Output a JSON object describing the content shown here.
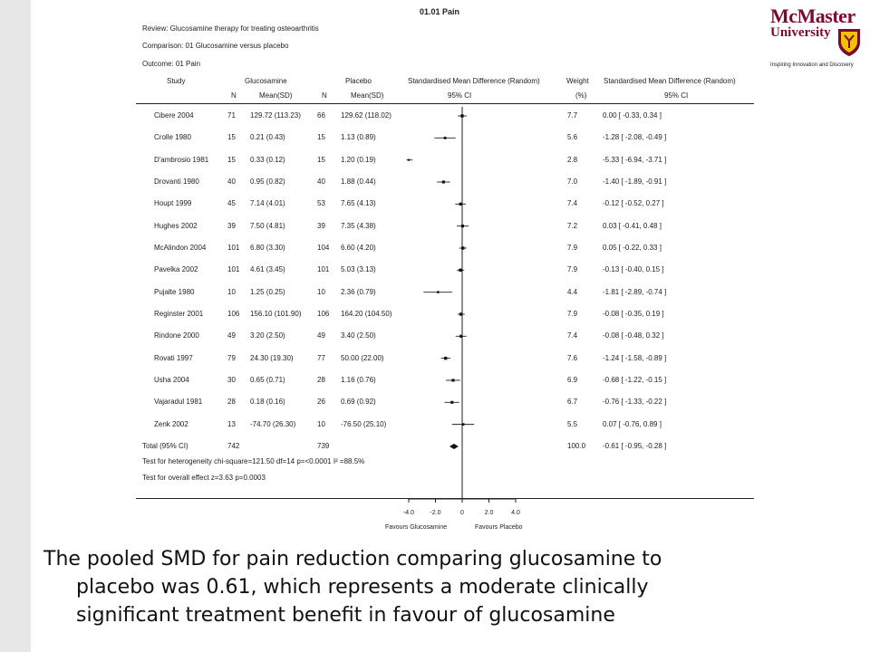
{
  "title": "01.01 Pain",
  "meta": {
    "review": "Review: Glucosamine therapy for treating osteoarthritis",
    "comparison": "Comparison: 01 Glucosamine versus placebo",
    "outcome": "Outcome: 01 Pain"
  },
  "headers": {
    "study": "Study",
    "glucosamine": "Glucosamine",
    "placebo": "Placebo",
    "smd1": "Standardised Mean Difference (Random)",
    "weight": "Weight",
    "smd2": "Standardised Mean Difference (Random)",
    "n1": "N",
    "mean1": "Mean(SD)",
    "n2": "N",
    "mean2": "Mean(SD)",
    "ci1": "95% CI",
    "pct": "(%)",
    "ci2": "95% CI"
  },
  "logo": {
    "line1": "McMaster",
    "line2": "University",
    "tagline": "Inspiring Innovation and Discovery"
  },
  "chart_data": {
    "type": "forest",
    "axis": {
      "min": -4,
      "max": 4,
      "ticks": [
        "-4.0",
        "-2.0",
        "0",
        "2.0",
        "4.0"
      ],
      "tick_values": [
        -4,
        -2,
        0,
        2,
        4
      ]
    },
    "xlabel_left": "Favours Glucosamine",
    "xlabel_right": "Favours Placebo",
    "studies": [
      {
        "study": "Cibere 2004",
        "n1": "71",
        "m1": "129.72 (113.23)",
        "n2": "66",
        "m2": "129.62 (118.02)",
        "w": "7.7",
        "ci": "0.00 [ -0.33, 0.34 ]",
        "est": 0.0,
        "lo": -0.33,
        "hi": 0.34,
        "weight": 7.7
      },
      {
        "study": "Crolle 1980",
        "n1": "15",
        "m1": "0.21 (0.43)",
        "n2": "15",
        "m2": "1.13 (0.89)",
        "w": "5.6",
        "ci": "-1.28 [ -2.08, -0.49 ]",
        "est": -1.28,
        "lo": -2.08,
        "hi": -0.49,
        "weight": 5.6
      },
      {
        "study": "D'ambrosio 1981",
        "n1": "15",
        "m1": "0.33 (0.12)",
        "n2": "15",
        "m2": "1.20 (0.19)",
        "w": "2.8",
        "ci": "-5.33 [ -6.94, -3.71 ]",
        "est": -5.33,
        "lo": -6.94,
        "hi": -3.71,
        "weight": 2.8
      },
      {
        "study": "Drovanti 1980",
        "n1": "40",
        "m1": "0.95 (0.82)",
        "n2": "40",
        "m2": "1.88 (0.44)",
        "w": "7.0",
        "ci": "-1.40 [ -1.89, -0.91 ]",
        "est": -1.4,
        "lo": -1.89,
        "hi": -0.91,
        "weight": 7.0
      },
      {
        "study": "Houpt 1999",
        "n1": "45",
        "m1": "7.14 (4.01)",
        "n2": "53",
        "m2": "7.65 (4.13)",
        "w": "7.4",
        "ci": "-0.12 [ -0.52, 0.27 ]",
        "est": -0.12,
        "lo": -0.52,
        "hi": 0.27,
        "weight": 7.4
      },
      {
        "study": "Hughes 2002",
        "n1": "39",
        "m1": "7.50 (4.81)",
        "n2": "39",
        "m2": "7.35 (4.38)",
        "w": "7.2",
        "ci": "0.03 [ -0.41, 0.48 ]",
        "est": 0.03,
        "lo": -0.41,
        "hi": 0.48,
        "weight": 7.2
      },
      {
        "study": "McAlindon 2004",
        "n1": "101",
        "m1": "6.80 (3.30)",
        "n2": "104",
        "m2": "6.60 (4.20)",
        "w": "7.9",
        "ci": "0.05 [ -0.22, 0.33 ]",
        "est": 0.05,
        "lo": -0.22,
        "hi": 0.33,
        "weight": 7.9
      },
      {
        "study": "Pavelka 2002",
        "n1": "101",
        "m1": "4.61 (3.45)",
        "n2": "101",
        "m2": "5.03 (3.13)",
        "w": "7.9",
        "ci": "-0.13 [ -0.40, 0.15 ]",
        "est": -0.13,
        "lo": -0.4,
        "hi": 0.15,
        "weight": 7.9
      },
      {
        "study": "Pujalte 1980",
        "n1": "10",
        "m1": "1.25 (0.25)",
        "n2": "10",
        "m2": "2.36 (0.79)",
        "w": "4.4",
        "ci": "-1.81 [ -2.89, -0.74 ]",
        "est": -1.81,
        "lo": -2.89,
        "hi": -0.74,
        "weight": 4.4
      },
      {
        "study": "Reginster 2001",
        "n1": "106",
        "m1": "156.10 (101.90)",
        "n2": "106",
        "m2": "164.20 (104.50)",
        "w": "7.9",
        "ci": "-0.08 [ -0.35, 0.19 ]",
        "est": -0.08,
        "lo": -0.35,
        "hi": 0.19,
        "weight": 7.9
      },
      {
        "study": "Rindone 2000",
        "n1": "49",
        "m1": "3.20 (2.50)",
        "n2": "49",
        "m2": "3.40 (2.50)",
        "w": "7.4",
        "ci": "-0.08 [ -0.48, 0.32 ]",
        "est": -0.08,
        "lo": -0.48,
        "hi": 0.32,
        "weight": 7.4
      },
      {
        "study": "Rovati 1997",
        "n1": "79",
        "m1": "24.30 (19.30)",
        "n2": "77",
        "m2": "50.00 (22.00)",
        "w": "7.6",
        "ci": "-1.24 [ -1.58, -0.89 ]",
        "est": -1.24,
        "lo": -1.58,
        "hi": -0.89,
        "weight": 7.6
      },
      {
        "study": "Usha 2004",
        "n1": "30",
        "m1": "0.65 (0.71)",
        "n2": "28",
        "m2": "1.16 (0.76)",
        "w": "6.9",
        "ci": "-0.68 [ -1.22, -0.15 ]",
        "est": -0.68,
        "lo": -1.22,
        "hi": -0.15,
        "weight": 6.9
      },
      {
        "study": "Vajaradul 1981",
        "n1": "28",
        "m1": "0.18 (0.16)",
        "n2": "26",
        "m2": "0.69 (0.92)",
        "w": "6.7",
        "ci": "-0.76 [ -1.33, -0.22 ]",
        "est": -0.76,
        "lo": -1.33,
        "hi": -0.22,
        "weight": 6.7
      },
      {
        "study": "Zenk 2002",
        "n1": "13",
        "m1": "-74.70 (26.30)",
        "n2": "10",
        "m2": "-76.50 (25.10)",
        "w": "5.5",
        "ci": "0.07 [ -0.76, 0.89 ]",
        "est": 0.07,
        "lo": -0.76,
        "hi": 0.89,
        "weight": 5.5
      }
    ],
    "total": {
      "study": "Total (95% CI)",
      "n1": "742",
      "n2": "739",
      "w": "100.0",
      "ci": "-0.61 [ -0.95, -0.28 ]",
      "est": -0.61,
      "lo": -0.95,
      "hi": -0.28
    },
    "heterogeneity": "Test for heterogeneity chi-square=121.50 df=14 p=<0.0001 I² =88.5%",
    "overall_effect": "Test for overall effect z=3.63 p=0.0003"
  },
  "caption": {
    "line1": "The pooled SMD for pain reduction comparing glucosamine to",
    "line2": "placebo was 0.61, which represents a moderate clinically",
    "line3": "significant treatment benefit in favour of glucosamine"
  }
}
